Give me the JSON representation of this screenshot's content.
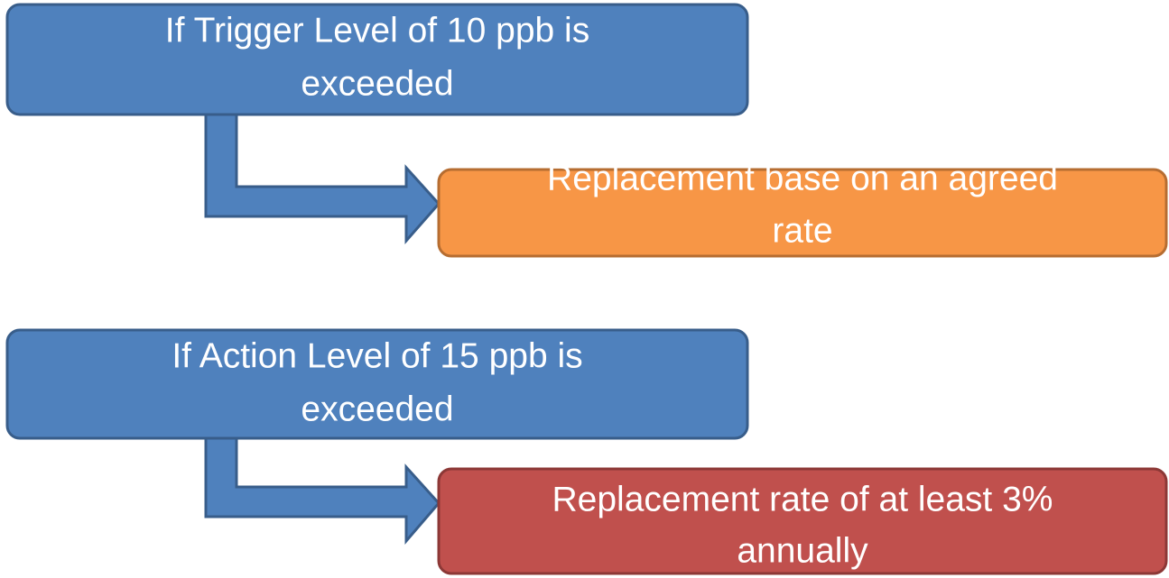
{
  "nodes": [
    {
      "lines": [
        "If Trigger Level of 10 ppb is",
        "exceeded"
      ]
    },
    {
      "lines": [
        "Replacement base on an agreed",
        "rate"
      ]
    },
    {
      "lines": [
        "If Action Level of 15 ppb is",
        "exceeded"
      ]
    },
    {
      "lines": [
        "Replacement rate of at least 3%",
        "annually"
      ]
    }
  ]
}
